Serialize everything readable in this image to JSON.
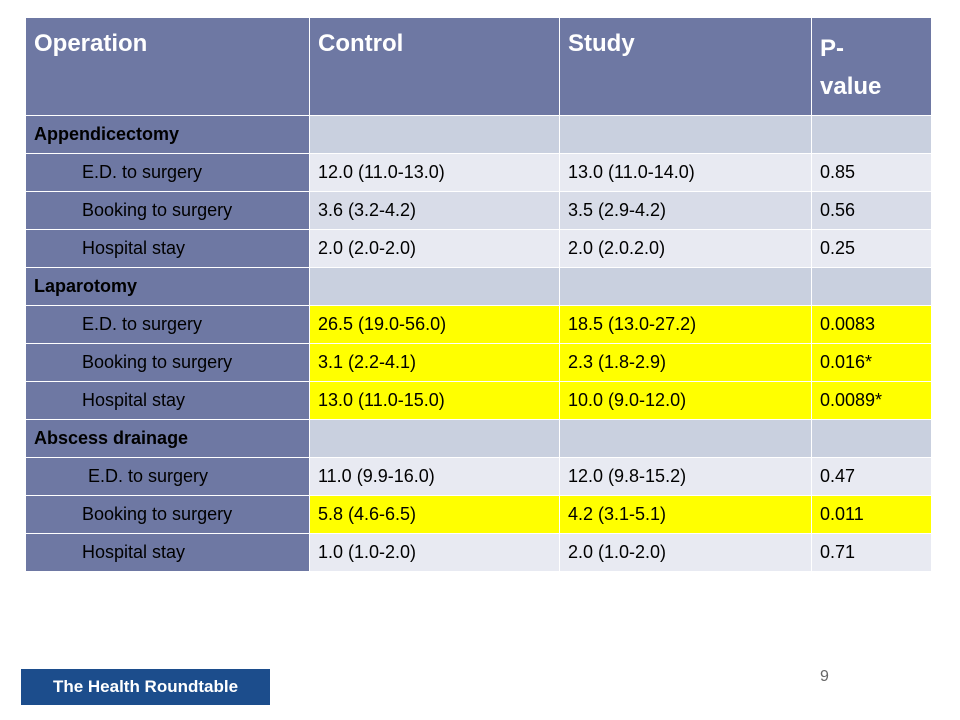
{
  "table": {
    "headers": [
      "Operation",
      "Control",
      "Study",
      "P-",
      "value"
    ],
    "groups": [
      {
        "label": "Appendicectomy",
        "rows": [
          {
            "name": "E.D. to surgery",
            "control": "12.0 (11.0-13.0)",
            "study": "13.0 (11.0-14.0)",
            "p": "0.85",
            "highlight": false
          },
          {
            "name": "Booking to surgery",
            "control": "3.6 (3.2-4.2)",
            "study": "3.5 (2.9-4.2)",
            "p": "0.56",
            "highlight": false
          },
          {
            "name": "Hospital stay",
            "control": "2.0 (2.0-2.0)",
            "study": "2.0 (2.0.2.0)",
            "p": "0.25",
            "highlight": false
          }
        ]
      },
      {
        "label": "Laparotomy",
        "rows": [
          {
            "name": "E.D. to surgery",
            "control": "26.5 (19.0-56.0)",
            "study": "18.5 (13.0-27.2)",
            "p": "0.0083",
            "highlight": true
          },
          {
            "name": "Booking to surgery",
            "control": "3.1 (2.2-4.1)",
            "study": "2.3 (1.8-2.9)",
            "p": "0.016*",
            "highlight": true
          },
          {
            "name": "Hospital stay",
            "control": "13.0 (11.0-15.0)",
            "study": "10.0 (9.0-12.0)",
            "p": "0.0089*",
            "highlight": true
          }
        ]
      },
      {
        "label": "Abscess drainage",
        "rows": [
          {
            "name": "E.D. to surgery",
            "control": "11.0 (9.9-16.0)",
            "study": "12.0 (9.8-15.2)",
            "p": "0.47",
            "highlight": false
          },
          {
            "name": "Booking to surgery",
            "control": "5.8 (4.6-6.5)",
            "study": "4.2 (3.1-5.1)",
            "p": "0.011",
            "highlight": true
          },
          {
            "name": "Hospital stay",
            "control": "1.0 (1.0-2.0)",
            "study": "2.0 (1.0-2.0)",
            "p": "0.71",
            "highlight": false
          }
        ]
      }
    ]
  },
  "footer": {
    "organization": "The Health Roundtable",
    "page_number": "9"
  },
  "colors": {
    "header": "#6e78a3",
    "highlight": "#ffff00",
    "badge": "#1c4d8c"
  }
}
